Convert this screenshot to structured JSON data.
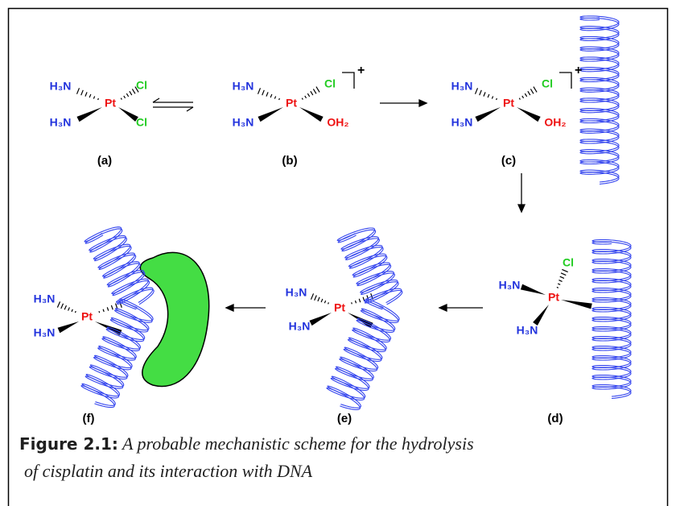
{
  "molecules": [
    {
      "label": "(a)",
      "atoms": [
        "H₃N",
        "H₃N",
        "Pt",
        "Cl",
        "Cl"
      ]
    },
    {
      "label": "(b)",
      "atoms": [
        "H₃N",
        "H₃N",
        "Pt",
        "Cl",
        "OH₂"
      ],
      "charge": "+"
    },
    {
      "label": "(c)",
      "atoms": [
        "H₃N",
        "H₃N",
        "Pt",
        "Cl",
        "OH₂"
      ],
      "charge": "+"
    },
    {
      "label": "(d)",
      "atoms": [
        "Cl",
        "H₃N",
        "Pt",
        "H₃N"
      ]
    },
    {
      "label": "(e)",
      "atoms": [
        "H₃N",
        "H₃N",
        "Pt"
      ]
    },
    {
      "label": "(f)",
      "atoms": [
        "H₃N",
        "H₃N",
        "Pt"
      ]
    }
  ],
  "caption": {
    "number": "Figure 2.1:",
    "line1": "A probable mechanistic scheme for the hydrolysis",
    "line2": "of cisplatin and its interaction with DNA"
  }
}
